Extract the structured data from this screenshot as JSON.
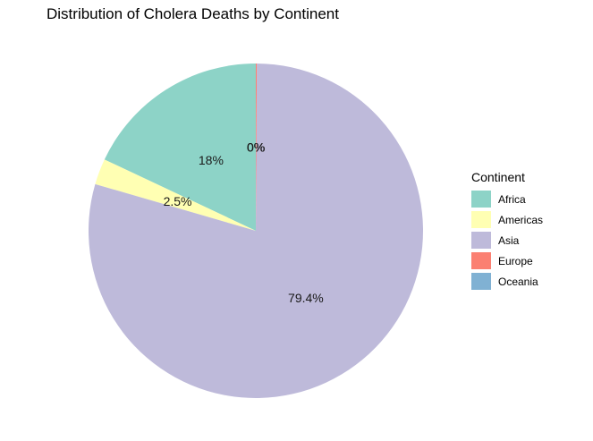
{
  "chart_data": {
    "type": "pie",
    "title": "Distribution of Cholera Deaths by Continent",
    "legend_title": "Continent",
    "legend_position": "right",
    "categories": [
      "Africa",
      "Americas",
      "Asia",
      "Europe",
      "Oceania"
    ],
    "values": [
      18.0,
      2.5,
      79.4,
      0.1,
      0.0
    ],
    "labels": [
      "18%",
      "2.5%",
      "79.4%",
      "0%",
      "0%"
    ],
    "colors": [
      "#8dd3c7",
      "#ffffb3",
      "#bebada",
      "#fb8072",
      "#80b1d3"
    ]
  }
}
